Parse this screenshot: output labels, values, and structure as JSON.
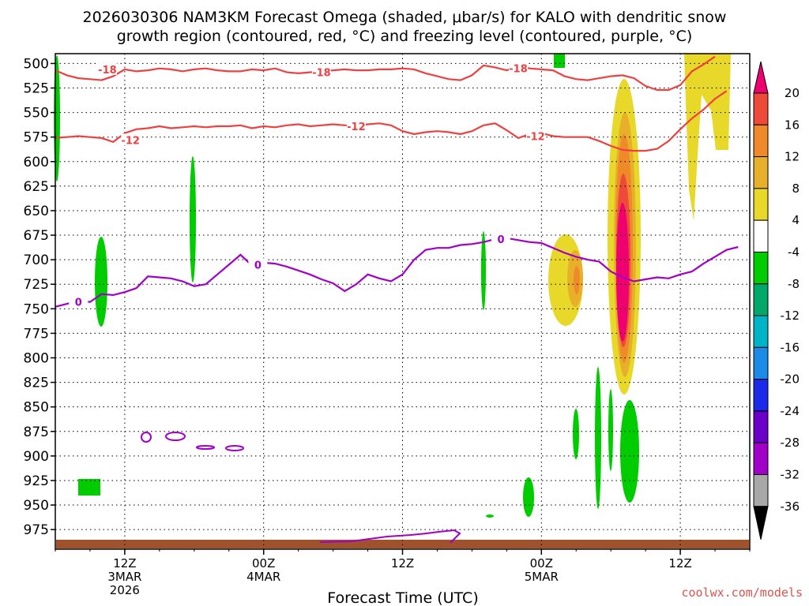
{
  "title": {
    "line1": "2026030306 NAM3KM Forecast Omega (shaded, μbar/s) for KALO with dendritic snow",
    "line2": "growth region (contoured, red, °C) and freezing level (contoured, purple, °C)"
  },
  "credit": "coolwx.com/models",
  "chart_data": {
    "type": "time-height section",
    "xlabel": "Forecast Time (UTC)",
    "x_ticks": [
      {
        "hour": 9,
        "lines": [
          "12Z",
          "3MAR",
          "2026"
        ]
      },
      {
        "hour": 21,
        "lines": [
          "00Z",
          "4MAR"
        ]
      },
      {
        "hour": 33,
        "lines": [
          "12Z"
        ]
      },
      {
        "hour": 45,
        "lines": [
          "00Z",
          "5MAR"
        ]
      },
      {
        "hour": 57,
        "lines": [
          "12Z"
        ]
      }
    ],
    "xlim": [
      3,
      63
    ],
    "y_ticks": [
      500,
      525,
      550,
      575,
      600,
      625,
      650,
      675,
      700,
      725,
      750,
      775,
      800,
      825,
      850,
      875,
      900,
      925,
      950,
      975
    ],
    "ylim": [
      490,
      995
    ],
    "colorbar": {
      "labels": [
        "20",
        "16",
        "12",
        "8",
        "4",
        "-4",
        "-8",
        "-12",
        "-16",
        "-20",
        "-24",
        "-28",
        "-32",
        "-36"
      ],
      "colors": [
        "#ee0070",
        "#ee4a3a",
        "#ee8a2a",
        "#e8b02a",
        "#e8d82a",
        "#ffffff",
        "#00cc00",
        "#00a86a",
        "#00b4c8",
        "#1a8ce8",
        "#1a2ae8",
        "#6a00c8",
        "#a000c8",
        "#a8a8a8"
      ]
    },
    "contours": [
      {
        "label": "-18",
        "color": "#ee4040",
        "points": [
          [
            3,
            507
          ],
          [
            4,
            512
          ],
          [
            5,
            515
          ],
          [
            6,
            516
          ],
          [
            7,
            517
          ],
          [
            8,
            513
          ],
          [
            9,
            506
          ],
          [
            10,
            508
          ],
          [
            11,
            507
          ],
          [
            12,
            505
          ],
          [
            13,
            506
          ],
          [
            14,
            508
          ],
          [
            15,
            506
          ],
          [
            16,
            505
          ],
          [
            17,
            507
          ],
          [
            18,
            508
          ],
          [
            19,
            508
          ],
          [
            20,
            506
          ],
          [
            21,
            507
          ],
          [
            22,
            505
          ],
          [
            23,
            509
          ],
          [
            24,
            510
          ],
          [
            25,
            509
          ],
          [
            26,
            508
          ],
          [
            27,
            507
          ],
          [
            28,
            506
          ],
          [
            29,
            507
          ],
          [
            30,
            507
          ],
          [
            31,
            506
          ],
          [
            32,
            506
          ],
          [
            33,
            505
          ],
          [
            34,
            506
          ],
          [
            35,
            510
          ],
          [
            36,
            513
          ],
          [
            37,
            516
          ],
          [
            38,
            517
          ],
          [
            39,
            512
          ],
          [
            40,
            502
          ],
          [
            41,
            504
          ],
          [
            42,
            507
          ],
          [
            43,
            503
          ],
          [
            44,
            505
          ],
          [
            45,
            506
          ],
          [
            46,
            507
          ],
          [
            47,
            513
          ],
          [
            48,
            516
          ],
          [
            49,
            517
          ],
          [
            50,
            515
          ],
          [
            51,
            513
          ],
          [
            52,
            512
          ],
          [
            53,
            515
          ],
          [
            54,
            523
          ],
          [
            55,
            527
          ],
          [
            56,
            527
          ],
          [
            57,
            522
          ],
          [
            58,
            508
          ],
          [
            59,
            501
          ],
          [
            60,
            493
          ]
        ],
        "label_at": [
          [
            7.5,
            506
          ],
          [
            26,
            509
          ],
          [
            43,
            505
          ]
        ]
      },
      {
        "label": "-12",
        "color": "#ee4040",
        "points": [
          [
            3,
            576
          ],
          [
            4,
            575
          ],
          [
            5,
            574
          ],
          [
            6,
            575
          ],
          [
            7,
            576
          ],
          [
            8,
            580
          ],
          [
            9,
            571
          ],
          [
            10,
            567
          ],
          [
            11,
            566
          ],
          [
            12,
            564
          ],
          [
            13,
            566
          ],
          [
            14,
            565
          ],
          [
            15,
            564
          ],
          [
            16,
            565
          ],
          [
            17,
            564
          ],
          [
            18,
            564
          ],
          [
            19,
            563
          ],
          [
            20,
            566
          ],
          [
            21,
            564
          ],
          [
            22,
            565
          ],
          [
            23,
            563
          ],
          [
            24,
            562
          ],
          [
            25,
            564
          ],
          [
            26,
            563
          ],
          [
            27,
            562
          ],
          [
            28,
            563
          ],
          [
            29,
            564
          ],
          [
            30,
            562
          ],
          [
            31,
            561
          ],
          [
            32,
            563
          ],
          [
            33,
            569
          ],
          [
            34,
            572
          ],
          [
            35,
            570
          ],
          [
            36,
            569
          ],
          [
            37,
            570
          ],
          [
            38,
            572
          ],
          [
            39,
            569
          ],
          [
            40,
            563
          ],
          [
            41,
            561
          ],
          [
            42,
            568
          ],
          [
            43,
            576
          ],
          [
            44,
            572
          ],
          [
            45,
            571
          ],
          [
            46,
            574
          ],
          [
            47,
            575
          ],
          [
            48,
            575
          ],
          [
            49,
            575
          ],
          [
            50,
            579
          ],
          [
            51,
            584
          ],
          [
            52,
            588
          ],
          [
            53,
            589
          ],
          [
            54,
            589
          ],
          [
            55,
            587
          ],
          [
            56,
            579
          ],
          [
            57,
            567
          ],
          [
            58,
            556
          ],
          [
            59,
            547
          ],
          [
            60,
            536
          ],
          [
            61,
            528
          ]
        ],
        "label_at": [
          [
            9.5,
            578
          ],
          [
            29,
            564
          ],
          [
            44.5,
            574
          ]
        ]
      },
      {
        "label": "0",
        "color": "#a000c8",
        "points": [
          [
            3,
            748
          ],
          [
            4,
            745
          ],
          [
            5,
            742
          ],
          [
            6,
            743
          ],
          [
            7,
            735
          ],
          [
            8,
            736
          ],
          [
            9,
            733
          ],
          [
            10,
            729
          ],
          [
            11,
            717
          ],
          [
            12,
            718
          ],
          [
            13,
            719
          ],
          [
            14,
            722
          ],
          [
            15,
            727
          ],
          [
            16,
            725
          ],
          [
            17,
            715
          ],
          [
            18,
            705
          ],
          [
            19,
            695
          ],
          [
            20,
            706
          ],
          [
            21,
            703
          ],
          [
            22,
            704
          ],
          [
            23,
            707
          ],
          [
            24,
            711
          ],
          [
            25,
            715
          ],
          [
            26,
            720
          ],
          [
            27,
            724
          ],
          [
            28,
            732
          ],
          [
            29,
            725
          ],
          [
            30,
            715
          ],
          [
            31,
            719
          ],
          [
            32,
            722
          ],
          [
            33,
            715
          ],
          [
            34,
            700
          ],
          [
            35,
            690
          ],
          [
            36,
            688
          ],
          [
            37,
            688
          ],
          [
            38,
            685
          ],
          [
            39,
            684
          ],
          [
            40,
            682
          ],
          [
            41,
            679
          ],
          [
            42,
            678
          ],
          [
            43,
            680
          ],
          [
            44,
            682
          ],
          [
            45,
            683
          ],
          [
            46,
            688
          ],
          [
            47,
            693
          ],
          [
            48,
            697
          ],
          [
            49,
            700
          ],
          [
            50,
            702
          ],
          [
            51,
            712
          ],
          [
            52,
            718
          ],
          [
            53,
            722
          ],
          [
            54,
            720
          ],
          [
            55,
            718
          ],
          [
            56,
            719
          ],
          [
            57,
            715
          ],
          [
            58,
            712
          ],
          [
            59,
            704
          ],
          [
            60,
            697
          ],
          [
            61,
            690
          ],
          [
            62,
            687
          ]
        ],
        "label_at": [
          [
            5,
            743
          ],
          [
            20.5,
            705
          ],
          [
            41.5,
            679
          ]
        ]
      }
    ]
  }
}
